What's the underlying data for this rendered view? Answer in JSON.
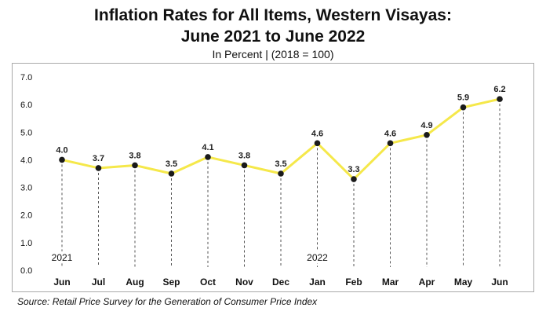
{
  "title_line1": "Inflation Rates for All Items, Western Visayas:",
  "title_line2": "June 2021 to June 2022",
  "subtitle": "In Percent | (2018 = 100)",
  "source": "Source: Retail Price Survey for the Generation of Consumer Price Index",
  "chart_data": {
    "type": "line",
    "categories": [
      "Jun",
      "Jul",
      "Aug",
      "Sep",
      "Oct",
      "Nov",
      "Dec",
      "Jan",
      "Feb",
      "Mar",
      "Apr",
      "May",
      "Jun"
    ],
    "values": [
      4.0,
      3.7,
      3.8,
      3.5,
      4.1,
      3.8,
      3.5,
      4.6,
      3.3,
      4.6,
      4.9,
      5.9,
      6.2
    ],
    "value_labels": [
      "4.0",
      "3.7",
      "3.8",
      "3.5",
      "4.1",
      "3.8",
      "3.5",
      "4.6",
      "3.3",
      "4.6",
      "4.9",
      "5.9",
      "6.2"
    ],
    "year_labels": [
      {
        "index": 0,
        "text": "2021"
      },
      {
        "index": 7,
        "text": "2022"
      }
    ],
    "y_ticks": [
      "0.0",
      "1.0",
      "2.0",
      "3.0",
      "4.0",
      "5.0",
      "6.0",
      "7.0"
    ],
    "ylim": [
      0,
      7
    ],
    "grid": false,
    "drop_lines": true,
    "colors": {
      "line": "#f5e84a",
      "marker": "#1a1a1a",
      "drop_line": "#555555",
      "axis_text": "#111111"
    }
  }
}
